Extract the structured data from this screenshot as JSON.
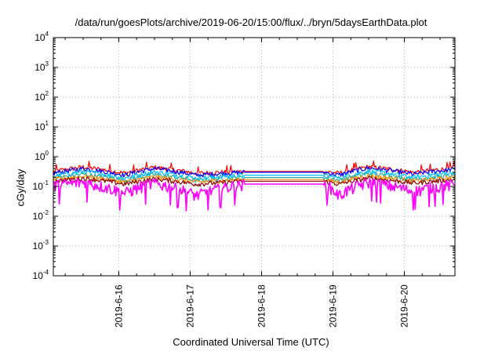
{
  "chart_data": {
    "type": "line",
    "title": "/data/run/goesPlots/archive/2019-06-20/15:00/flux/../bryn/5daysEarthData.plot",
    "xlabel": "Coordinated Universal Time (UTC)",
    "ylabel": "cGy/day",
    "y_scale": "log",
    "ylim": [
      0.0001,
      10000
    ],
    "xlim": [
      "2019-06-15 02:00",
      "2019-06-20 17:00"
    ],
    "y_ticks": [
      {
        "base": "10",
        "exp": "-4"
      },
      {
        "base": "10",
        "exp": "-3"
      },
      {
        "base": "10",
        "exp": "-2"
      },
      {
        "base": "10",
        "exp": "-1"
      },
      {
        "base": "10",
        "exp": "0"
      },
      {
        "base": "10",
        "exp": "1"
      },
      {
        "base": "10",
        "exp": "2"
      },
      {
        "base": "10",
        "exp": "3"
      },
      {
        "base": "10",
        "exp": "4"
      }
    ],
    "x_ticks": [
      "2019-6-16",
      "2019-6-17",
      "2019-6-18",
      "2019-6-19",
      "2019-6-20"
    ],
    "grid": true,
    "data_gap": [
      "2019-06-17 18:00",
      "2019-06-18 21:00"
    ],
    "series": [
      {
        "color": "#ff0000",
        "values": [
          0.32,
          0.45,
          0.28,
          0.44,
          0.28,
          0.32,
          0.32,
          0.28,
          0.46,
          0.3,
          0.42
        ]
      },
      {
        "color": "#0000ff",
        "values": [
          0.28,
          0.4,
          0.24,
          0.4,
          0.24,
          0.3,
          0.3,
          0.24,
          0.42,
          0.26,
          0.38
        ]
      },
      {
        "color": "#00bfff",
        "values": [
          0.22,
          0.32,
          0.19,
          0.31,
          0.19,
          0.24,
          0.24,
          0.19,
          0.33,
          0.2,
          0.3
        ]
      },
      {
        "color": "#20b2aa",
        "values": [
          0.19,
          0.26,
          0.16,
          0.25,
          0.16,
          0.2,
          0.2,
          0.16,
          0.27,
          0.17,
          0.24
        ]
      },
      {
        "color": "#ff8c00",
        "values": [
          0.17,
          0.22,
          0.14,
          0.21,
          0.14,
          0.17,
          0.17,
          0.14,
          0.23,
          0.15,
          0.2
        ]
      },
      {
        "color": "#8b0000",
        "values": [
          0.15,
          0.19,
          0.12,
          0.18,
          0.12,
          0.15,
          0.15,
          0.12,
          0.19,
          0.13,
          0.17
        ]
      },
      {
        "color": "#ff00ff",
        "values": [
          0.11,
          0.14,
          0.06,
          0.13,
          0.05,
          0.12,
          0.12,
          0.05,
          0.14,
          0.07,
          0.12
        ]
      }
    ],
    "series_x": [
      "2019-06-15 02:00",
      "2019-06-15 12:00",
      "2019-06-16 02:00",
      "2019-06-16 12:00",
      "2019-06-17 02:00",
      "2019-06-17 18:00",
      "2019-06-18 21:00",
      "2019-06-19 02:00",
      "2019-06-19 12:00",
      "2019-06-20 03:00",
      "2019-06-20 17:00"
    ]
  }
}
